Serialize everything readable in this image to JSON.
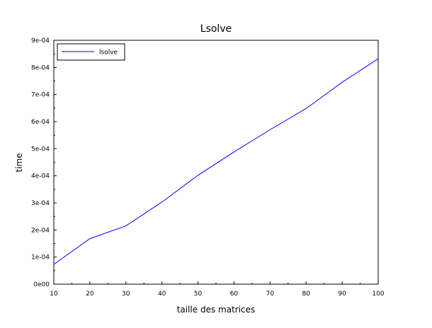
{
  "chart_data": {
    "type": "line",
    "title": "Lsolve",
    "xlabel": "taille des matrices",
    "ylabel": "time",
    "x": [
      10,
      20,
      30,
      40,
      50,
      60,
      70,
      80,
      90,
      100
    ],
    "series": [
      {
        "name": "lsolve",
        "color": "#0000ff",
        "values": [
          7.3e-05,
          0.000168,
          0.000215,
          0.000303,
          0.000402,
          0.000488,
          0.00057,
          0.000648,
          0.000745,
          0.000832
        ]
      }
    ],
    "xlim": [
      10,
      100
    ],
    "ylim": [
      0,
      0.0009
    ],
    "x_ticks": [
      10,
      20,
      30,
      40,
      50,
      60,
      70,
      80,
      90,
      100
    ],
    "x_tick_labels": [
      "10",
      "20",
      "30",
      "40",
      "50",
      "60",
      "70",
      "80",
      "90",
      "100"
    ],
    "y_ticks": [
      0,
      0.0001,
      0.0002,
      0.0003,
      0.0004,
      0.0005,
      0.0006,
      0.0007,
      0.0008,
      0.0009
    ],
    "y_tick_labels": [
      "0e00",
      "1e-04",
      "2e-04",
      "3e-04",
      "4e-04",
      "5e-04",
      "6e-04",
      "7e-04",
      "8e-04",
      "9e-04"
    ],
    "grid": false,
    "legend_position": "top-left"
  }
}
